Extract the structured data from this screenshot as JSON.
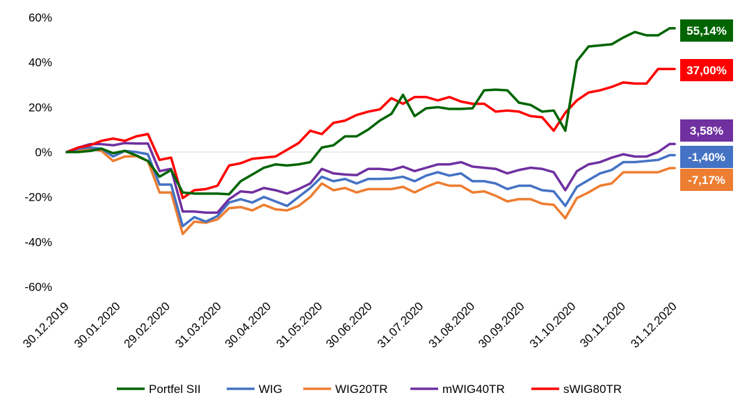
{
  "chart_data": {
    "type": "line",
    "x": [
      "30.12.2019",
      "06.01.2020",
      "13.01.2020",
      "20.01.2020",
      "27.01.2020",
      "03.02.2020",
      "10.02.2020",
      "17.02.2020",
      "24.02.2020",
      "02.03.2020",
      "09.03.2020",
      "16.03.2020",
      "23.03.2020",
      "30.03.2020",
      "06.04.2020",
      "13.04.2020",
      "20.04.2020",
      "27.04.2020",
      "04.05.2020",
      "11.05.2020",
      "18.05.2020",
      "25.05.2020",
      "01.06.2020",
      "08.06.2020",
      "15.06.2020",
      "22.06.2020",
      "29.06.2020",
      "06.07.2020",
      "13.07.2020",
      "20.07.2020",
      "27.07.2020",
      "03.08.2020",
      "10.08.2020",
      "17.08.2020",
      "24.08.2020",
      "31.08.2020",
      "07.09.2020",
      "14.09.2020",
      "21.09.2020",
      "28.09.2020",
      "05.10.2020",
      "12.10.2020",
      "19.10.2020",
      "26.10.2020",
      "02.11.2020",
      "09.11.2020",
      "16.11.2020",
      "23.11.2020",
      "30.11.2020",
      "07.12.2020",
      "14.12.2020",
      "21.12.2020",
      "28.12.2020",
      "31.12.2020"
    ],
    "xticks": [
      "30.12.2019",
      "30.01.2020",
      "29.02.2020",
      "31.03.2020",
      "30.04.2020",
      "31.05.2020",
      "30.06.2020",
      "31.07.2020",
      "31.08.2020",
      "30.09.2020",
      "31.10.2020",
      "30.11.2020",
      "31.12.2020"
    ],
    "ylim": [
      -60,
      60
    ],
    "yticks": [
      "-60%",
      "-40%",
      "-20%",
      "0%",
      "20%",
      "40%",
      "60%"
    ],
    "title": "",
    "xlabel": "",
    "ylabel": "",
    "grid": false,
    "legend_position": "bottom",
    "series": [
      {
        "name": "Portfel SII",
        "color": "#006400",
        "end_label": "55,14%",
        "values": [
          0,
          0,
          0.5,
          1.5,
          -0.5,
          0.5,
          -1.5,
          -4,
          -11,
          -8,
          -18,
          -18.5,
          -18.5,
          -18.5,
          -18.8,
          -13,
          -10,
          -7,
          -5.5,
          -6,
          -5.5,
          -4.5,
          2,
          3,
          7,
          7,
          10,
          14,
          17,
          25.5,
          16,
          19.5,
          20,
          19.2,
          19.2,
          19.5,
          27.5,
          27.8,
          27.5,
          22,
          21,
          18,
          18.5,
          9.5,
          40.5,
          47,
          47.5,
          48,
          51,
          53.5,
          52,
          52,
          55.14,
          55.14
        ]
      },
      {
        "name": "WIG",
        "color": "#4472C4",
        "end_label": "-1,40%",
        "values": [
          0,
          1.5,
          2,
          1.5,
          -2,
          0.5,
          0,
          -1,
          -14.5,
          -14.5,
          -33,
          -29,
          -31,
          -28.5,
          -22.5,
          -21,
          -22.5,
          -20,
          -22,
          -24,
          -20,
          -16,
          -11,
          -13,
          -12,
          -14,
          -12,
          -12,
          -11.8,
          -11,
          -13,
          -10.5,
          -9,
          -10.5,
          -9.5,
          -13,
          -13,
          -14,
          -16.5,
          -15,
          -15,
          -17,
          -17.5,
          -24,
          -15.5,
          -12.5,
          -9.5,
          -8,
          -4.5,
          -4.5,
          -4,
          -3.5,
          -1.4,
          -1.4
        ]
      },
      {
        "name": "WIG20TR",
        "color": "#ED7D31",
        "end_label": "-7,17%",
        "values": [
          0,
          1,
          1.5,
          0.5,
          -4,
          -2,
          -1.8,
          -4,
          -18,
          -18,
          -36.5,
          -31,
          -31.5,
          -30,
          -25,
          -24.5,
          -26,
          -23.5,
          -25.5,
          -26,
          -24,
          -20,
          -14,
          -17,
          -16,
          -18,
          -16.5,
          -16.5,
          -16.5,
          -15.5,
          -18,
          -15.5,
          -13.5,
          -15,
          -15,
          -18,
          -17.5,
          -19.5,
          -22,
          -21,
          -21,
          -23,
          -23.5,
          -29.5,
          -20.5,
          -18,
          -15,
          -14,
          -9,
          -9,
          -9,
          -9,
          -7.17,
          -7.17
        ]
      },
      {
        "name": "mWIG40TR",
        "color": "#7030A0",
        "end_label": "3,58%",
        "values": [
          0,
          2,
          3.5,
          3.5,
          3,
          4,
          3.8,
          3.8,
          -8.5,
          -7.5,
          -26.5,
          -26.5,
          -27,
          -27,
          -21,
          -17.5,
          -18,
          -16,
          -17,
          -18.5,
          -16.5,
          -14,
          -7.5,
          -9.5,
          -10,
          -10.3,
          -7.5,
          -7.5,
          -8,
          -6.5,
          -8.5,
          -7,
          -5.5,
          -5.5,
          -4.5,
          -6.5,
          -7,
          -7.5,
          -9.5,
          -8,
          -7,
          -7.5,
          -9,
          -17,
          -8.5,
          -5.5,
          -4.5,
          -2.5,
          -1,
          -2,
          -2,
          0,
          3.58,
          3.58
        ]
      },
      {
        "name": "sWIG80TR",
        "color": "#FF0000",
        "end_label": "37,00%",
        "values": [
          0,
          2,
          3,
          5,
          6,
          5,
          7,
          8,
          -3.5,
          -2.5,
          -20.5,
          -17,
          -16.5,
          -15,
          -6,
          -5,
          -3,
          -2.5,
          -2,
          1,
          4,
          9.5,
          8,
          13,
          14,
          16.5,
          18,
          19,
          24,
          21.5,
          24.5,
          24.5,
          23,
          24.5,
          22.5,
          21.5,
          21.5,
          18,
          18.5,
          18,
          16,
          15.5,
          9.5,
          17.5,
          23,
          26.5,
          27.5,
          29,
          31,
          30.5,
          30.5,
          37,
          37,
          37
        ]
      }
    ]
  }
}
